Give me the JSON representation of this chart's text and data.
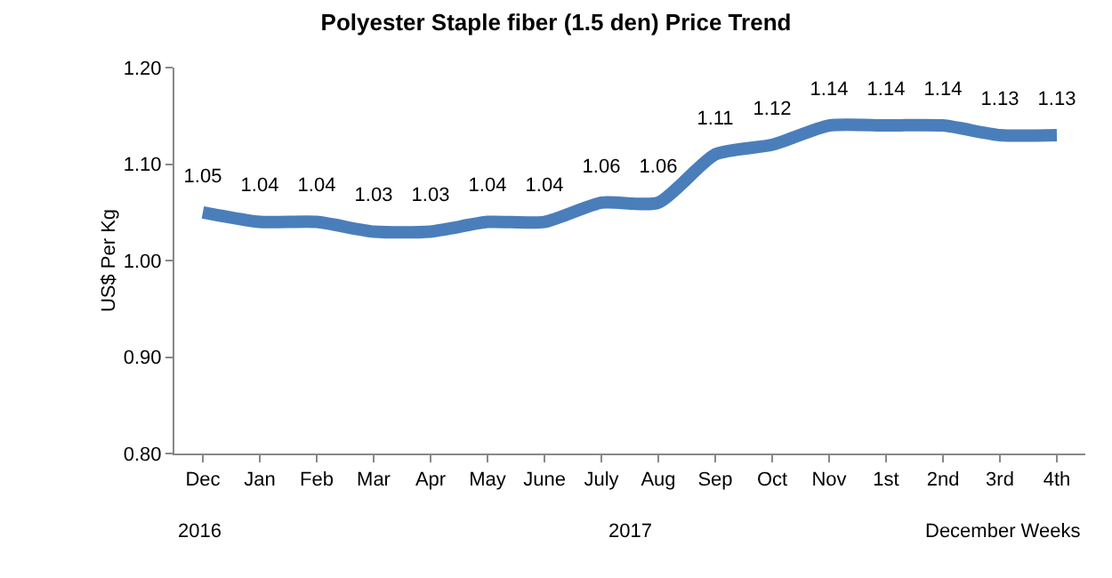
{
  "chart_data": {
    "type": "line",
    "title": "Polyester Staple fiber (1.5 den) Price Trend",
    "ylabel": "US$ Per Kg",
    "categories": [
      "Dec",
      "Jan",
      "Feb",
      "Mar",
      "Apr",
      "May",
      "June",
      "July",
      "Aug",
      "Sep",
      "Oct",
      "Nov",
      "1st",
      "2nd",
      "3rd",
      "4th"
    ],
    "series": [
      {
        "color": "#4a7ebb",
        "values": [
          1.05,
          1.04,
          1.04,
          1.03,
          1.03,
          1.04,
          1.04,
          1.06,
          1.06,
          1.11,
          1.12,
          1.14,
          1.14,
          1.14,
          1.13,
          1.13
        ]
      }
    ],
    "ylim": [
      0.8,
      1.2
    ],
    "yticks": [
      {
        "value": 0.8,
        "label": "0.80"
      },
      {
        "value": 0.9,
        "label": "0.90"
      },
      {
        "value": 1.0,
        "label": "1.00"
      },
      {
        "value": 1.1,
        "label": "1.10"
      },
      {
        "value": 1.2,
        "label": "1.20"
      }
    ],
    "data_labels": true,
    "grid": false,
    "legend": false,
    "marker": "none",
    "line_style": "solid",
    "annotations": [
      "2016",
      "2017",
      "December Weeks"
    ]
  }
}
